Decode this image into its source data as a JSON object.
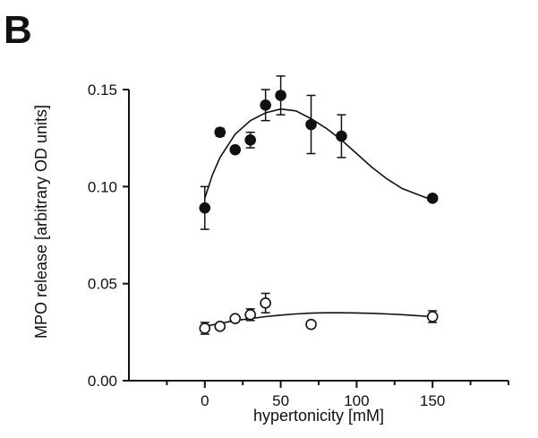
{
  "panel_label": "B",
  "chart_data": {
    "type": "scatter",
    "title": "",
    "xlabel": "hypertonicity [mM]",
    "ylabel": "MPO release [arbitrary OD units]",
    "xlim": [
      -50,
      200
    ],
    "ylim": [
      0.0,
      0.15
    ],
    "x_ticks": [
      0,
      50,
      100,
      150
    ],
    "x_minor_ticks": [
      -25,
      25,
      75,
      125,
      175,
      200
    ],
    "y_ticks": [
      0.0,
      0.05,
      0.1,
      0.15
    ],
    "y_tick_labels": [
      "0.00",
      "0.05",
      "0.10",
      "0.15"
    ],
    "grid": false,
    "legend": "none",
    "series": [
      {
        "marker": "filled-circle",
        "color": "#111111",
        "x": [
          0,
          10,
          20,
          30,
          40,
          50,
          70,
          90,
          150
        ],
        "y": [
          0.089,
          0.128,
          0.119,
          0.124,
          0.142,
          0.147,
          0.132,
          0.126,
          0.094
        ],
        "err": [
          0.011,
          0.002,
          0.0015,
          0.004,
          0.008,
          0.01,
          0.015,
          0.011,
          0.001
        ],
        "fit": {
          "x": [
            0,
            5,
            10,
            20,
            30,
            40,
            50,
            60,
            70,
            80,
            90,
            100,
            110,
            120,
            130,
            140,
            150
          ],
          "y": [
            0.094,
            0.106,
            0.115,
            0.127,
            0.134,
            0.138,
            0.14,
            0.139,
            0.135,
            0.13,
            0.124,
            0.117,
            0.11,
            0.104,
            0.099,
            0.096,
            0.093
          ]
        }
      },
      {
        "marker": "open-circle",
        "color": "#111111",
        "x": [
          0,
          10,
          20,
          30,
          40,
          70,
          150
        ],
        "y": [
          0.027,
          0.028,
          0.032,
          0.034,
          0.04,
          0.029,
          0.033
        ],
        "err": [
          0.003,
          0.001,
          0.001,
          0.003,
          0.005,
          0.001,
          0.003
        ],
        "fit": {
          "x": [
            0,
            10,
            20,
            30,
            40,
            50,
            60,
            70,
            80,
            90,
            100,
            110,
            120,
            130,
            140,
            150
          ],
          "y": [
            0.028,
            0.0295,
            0.031,
            0.032,
            0.033,
            0.0338,
            0.0344,
            0.0348,
            0.035,
            0.035,
            0.0349,
            0.0347,
            0.0344,
            0.034,
            0.0335,
            0.033
          ]
        }
      }
    ]
  }
}
